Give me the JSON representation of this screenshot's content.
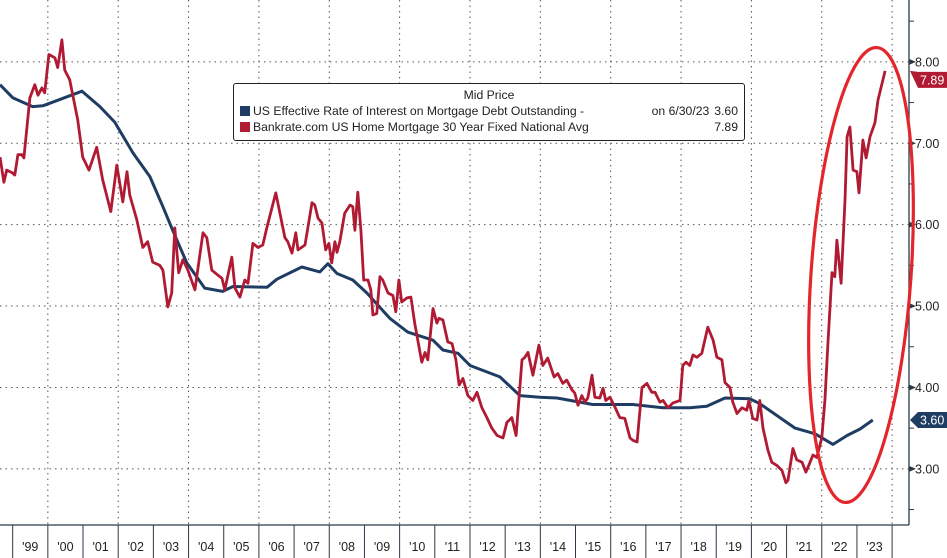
{
  "chart_data": {
    "type": "line",
    "legend": {
      "title": "Mid Price",
      "placement": "top-center",
      "entries": [
        {
          "label": "US Effective Rate of Interest on Mortgage Debt Outstanding -",
          "date": "on 6/30/23",
          "value": "3.60",
          "color": "#1f3d63"
        },
        {
          "label": "Bankrate.com US Home Mortgage 30 Year Fixed National Avg",
          "date": "",
          "value": "7.89",
          "color": "#b01a33"
        }
      ]
    },
    "xlim": [
      1998.64,
      2024.48
    ],
    "ylim": [
      2.31,
      8.76
    ],
    "y_axis_position": "right",
    "grid": true,
    "x_tick_labels": [
      "'99",
      "'00",
      "'01",
      "'02",
      "'03",
      "'04",
      "'05",
      "'06",
      "'07",
      "'08",
      "'09",
      "'10",
      "'11",
      "'12",
      "'13",
      "'14",
      "'15",
      "'16",
      "'17",
      "'18",
      "'19",
      "'20",
      "'21",
      "'22",
      "'23"
    ],
    "x_tick_years": [
      1999,
      2000,
      2001,
      2002,
      2003,
      2004,
      2005,
      2006,
      2007,
      2008,
      2009,
      2010,
      2011,
      2012,
      2013,
      2014,
      2015,
      2016,
      2017,
      2018,
      2019,
      2020,
      2021,
      2022,
      2023
    ],
    "y_ticks": [
      3,
      4,
      5,
      6,
      7,
      8
    ],
    "y_tick_labels": [
      "3.00",
      "4.00",
      "5.00",
      "6.00",
      "7.00",
      "8.00"
    ],
    "last_value_tags": [
      {
        "series": 0,
        "label": "3.60",
        "value": 3.6
      },
      {
        "series": 1,
        "label": "7.89",
        "value": 7.89
      }
    ],
    "series": [
      {
        "name": "US Effective Rate of Interest on Mortgage Debt Outstanding",
        "color": "#1f3d63",
        "points": [
          [
            1998.64,
            7.72
          ],
          [
            1999.0,
            7.56
          ],
          [
            1999.57,
            7.45
          ],
          [
            1999.86,
            7.46
          ],
          [
            2000.97,
            7.64
          ],
          [
            2001.48,
            7.45
          ],
          [
            2001.9,
            7.26
          ],
          [
            2002.42,
            6.88
          ],
          [
            2002.9,
            6.59
          ],
          [
            2003.27,
            6.22
          ],
          [
            2003.55,
            5.93
          ],
          [
            2003.95,
            5.53
          ],
          [
            2004.46,
            5.22
          ],
          [
            2004.97,
            5.18
          ],
          [
            2005.26,
            5.24
          ],
          [
            2006.23,
            5.23
          ],
          [
            2006.51,
            5.33
          ],
          [
            2007.22,
            5.48
          ],
          [
            2007.73,
            5.42
          ],
          [
            2007.96,
            5.52
          ],
          [
            2008.22,
            5.4
          ],
          [
            2008.67,
            5.32
          ],
          [
            2009.07,
            5.16
          ],
          [
            2009.72,
            4.85
          ],
          [
            2010.23,
            4.68
          ],
          [
            2010.95,
            4.58
          ],
          [
            2011.23,
            4.46
          ],
          [
            2011.66,
            4.42
          ],
          [
            2012.0,
            4.27
          ],
          [
            2012.85,
            4.13
          ],
          [
            2013.42,
            3.9
          ],
          [
            2013.99,
            3.88
          ],
          [
            2014.47,
            3.87
          ],
          [
            2015.49,
            3.79
          ],
          [
            2016.63,
            3.79
          ],
          [
            2017.48,
            3.75
          ],
          [
            2018.25,
            3.75
          ],
          [
            2018.73,
            3.77
          ],
          [
            2019.25,
            3.87
          ],
          [
            2019.96,
            3.86
          ],
          [
            2020.24,
            3.8
          ],
          [
            2020.81,
            3.63
          ],
          [
            2021.24,
            3.5
          ],
          [
            2021.81,
            3.43
          ],
          [
            2022.32,
            3.3
          ],
          [
            2022.72,
            3.41
          ],
          [
            2023.09,
            3.49
          ],
          [
            2023.45,
            3.6
          ]
        ]
      },
      {
        "name": "Bankrate.com US Home Mortgage 30 Year Fixed National Avg",
        "color": "#b01a33",
        "points": [
          [
            1998.64,
            6.83
          ],
          [
            1998.75,
            6.52
          ],
          [
            1998.83,
            6.67
          ],
          [
            1998.98,
            6.64
          ],
          [
            1999.06,
            6.61
          ],
          [
            1999.15,
            6.86
          ],
          [
            1999.26,
            6.86
          ],
          [
            1999.32,
            6.82
          ],
          [
            1999.49,
            7.56
          ],
          [
            1999.63,
            7.72
          ],
          [
            1999.72,
            7.59
          ],
          [
            1999.83,
            7.68
          ],
          [
            1999.91,
            7.62
          ],
          [
            2000.03,
            8.09
          ],
          [
            2000.2,
            8.05
          ],
          [
            2000.28,
            7.93
          ],
          [
            2000.4,
            8.27
          ],
          [
            2000.48,
            7.9
          ],
          [
            2000.62,
            7.78
          ],
          [
            2000.85,
            7.29
          ],
          [
            2000.99,
            6.83
          ],
          [
            2001.17,
            6.67
          ],
          [
            2001.39,
            6.95
          ],
          [
            2001.56,
            6.55
          ],
          [
            2001.79,
            6.16
          ],
          [
            2001.96,
            6.73
          ],
          [
            2002.13,
            6.28
          ],
          [
            2002.25,
            6.65
          ],
          [
            2002.33,
            6.36
          ],
          [
            2002.53,
            6.06
          ],
          [
            2002.7,
            5.72
          ],
          [
            2002.84,
            5.79
          ],
          [
            2002.98,
            5.54
          ],
          [
            2003.18,
            5.5
          ],
          [
            2003.27,
            5.44
          ],
          [
            2003.41,
            4.99
          ],
          [
            2003.52,
            5.16
          ],
          [
            2003.61,
            5.96
          ],
          [
            2003.72,
            5.41
          ],
          [
            2003.84,
            5.57
          ],
          [
            2003.98,
            5.44
          ],
          [
            2004.18,
            5.2
          ],
          [
            2004.41,
            5.9
          ],
          [
            2004.52,
            5.84
          ],
          [
            2004.66,
            5.44
          ],
          [
            2004.83,
            5.38
          ],
          [
            2004.95,
            5.34
          ],
          [
            2005.03,
            5.2
          ],
          [
            2005.23,
            5.6
          ],
          [
            2005.32,
            5.22
          ],
          [
            2005.46,
            5.11
          ],
          [
            2005.6,
            5.32
          ],
          [
            2005.69,
            5.28
          ],
          [
            2005.83,
            5.77
          ],
          [
            2005.97,
            5.72
          ],
          [
            2006.11,
            5.75
          ],
          [
            2006.23,
            5.97
          ],
          [
            2006.48,
            6.39
          ],
          [
            2006.74,
            5.84
          ],
          [
            2006.82,
            5.79
          ],
          [
            2006.94,
            5.65
          ],
          [
            2007.05,
            5.9
          ],
          [
            2007.11,
            5.69
          ],
          [
            2007.31,
            5.75
          ],
          [
            2007.51,
            6.27
          ],
          [
            2007.59,
            6.24
          ],
          [
            2007.68,
            6.08
          ],
          [
            2007.79,
            6.02
          ],
          [
            2007.9,
            5.69
          ],
          [
            2007.99,
            5.77
          ],
          [
            2008.07,
            5.53
          ],
          [
            2008.16,
            5.79
          ],
          [
            2008.22,
            5.66
          ],
          [
            2008.3,
            5.79
          ],
          [
            2008.44,
            6.14
          ],
          [
            2008.59,
            6.24
          ],
          [
            2008.67,
            6.22
          ],
          [
            2008.73,
            5.93
          ],
          [
            2008.81,
            6.4
          ],
          [
            2008.9,
            5.93
          ],
          [
            2008.98,
            5.32
          ],
          [
            2009.1,
            5.32
          ],
          [
            2009.18,
            5.2
          ],
          [
            2009.24,
            4.89
          ],
          [
            2009.35,
            4.91
          ],
          [
            2009.44,
            5.36
          ],
          [
            2009.52,
            5.32
          ],
          [
            2009.67,
            5.16
          ],
          [
            2009.81,
            5.13
          ],
          [
            2009.89,
            4.93
          ],
          [
            2009.98,
            5.32
          ],
          [
            2010.06,
            5.05
          ],
          [
            2010.21,
            5.1
          ],
          [
            2010.32,
            5.11
          ],
          [
            2010.43,
            4.79
          ],
          [
            2010.63,
            4.31
          ],
          [
            2010.72,
            4.43
          ],
          [
            2010.8,
            4.34
          ],
          [
            2010.95,
            4.97
          ],
          [
            2011.06,
            4.79
          ],
          [
            2011.12,
            4.85
          ],
          [
            2011.23,
            4.83
          ],
          [
            2011.37,
            4.56
          ],
          [
            2011.49,
            4.54
          ],
          [
            2011.6,
            4.34
          ],
          [
            2011.69,
            4.03
          ],
          [
            2011.8,
            4.11
          ],
          [
            2011.94,
            3.9
          ],
          [
            2012.08,
            3.84
          ],
          [
            2012.2,
            3.94
          ],
          [
            2012.34,
            3.75
          ],
          [
            2012.48,
            3.63
          ],
          [
            2012.62,
            3.5
          ],
          [
            2012.77,
            3.41
          ],
          [
            2012.94,
            3.38
          ],
          [
            2013.05,
            3.57
          ],
          [
            2013.19,
            3.63
          ],
          [
            2013.31,
            3.41
          ],
          [
            2013.48,
            4.34
          ],
          [
            2013.56,
            4.37
          ],
          [
            2013.65,
            4.43
          ],
          [
            2013.79,
            4.15
          ],
          [
            2013.96,
            4.52
          ],
          [
            2014.07,
            4.27
          ],
          [
            2014.21,
            4.36
          ],
          [
            2014.39,
            4.13
          ],
          [
            2014.5,
            4.17
          ],
          [
            2014.64,
            4.05
          ],
          [
            2014.75,
            4.09
          ],
          [
            2014.9,
            3.97
          ],
          [
            2014.98,
            3.93
          ],
          [
            2015.07,
            3.78
          ],
          [
            2015.18,
            3.9
          ],
          [
            2015.27,
            3.82
          ],
          [
            2015.35,
            3.87
          ],
          [
            2015.47,
            4.15
          ],
          [
            2015.55,
            3.88
          ],
          [
            2015.69,
            3.87
          ],
          [
            2015.78,
            3.99
          ],
          [
            2015.86,
            3.84
          ],
          [
            2015.98,
            3.88
          ],
          [
            2016.12,
            3.76
          ],
          [
            2016.26,
            3.63
          ],
          [
            2016.4,
            3.62
          ],
          [
            2016.55,
            3.38
          ],
          [
            2016.63,
            3.35
          ],
          [
            2016.75,
            3.33
          ],
          [
            2016.89,
            4.0
          ],
          [
            2017.03,
            4.05
          ],
          [
            2017.17,
            3.94
          ],
          [
            2017.26,
            3.94
          ],
          [
            2017.4,
            3.82
          ],
          [
            2017.49,
            3.84
          ],
          [
            2017.63,
            3.75
          ],
          [
            2017.77,
            3.81
          ],
          [
            2017.97,
            3.84
          ],
          [
            2018.05,
            4.27
          ],
          [
            2018.14,
            4.31
          ],
          [
            2018.25,
            4.27
          ],
          [
            2018.34,
            4.4
          ],
          [
            2018.45,
            4.37
          ],
          [
            2018.59,
            4.42
          ],
          [
            2018.76,
            4.74
          ],
          [
            2018.91,
            4.58
          ],
          [
            2019.02,
            4.37
          ],
          [
            2019.16,
            4.34
          ],
          [
            2019.25,
            4.06
          ],
          [
            2019.39,
            4.0
          ],
          [
            2019.47,
            3.82
          ],
          [
            2019.59,
            3.68
          ],
          [
            2019.73,
            3.75
          ],
          [
            2019.87,
            3.72
          ],
          [
            2019.93,
            3.84
          ],
          [
            2020.04,
            3.62
          ],
          [
            2020.16,
            3.6
          ],
          [
            2020.24,
            3.84
          ],
          [
            2020.33,
            3.5
          ],
          [
            2020.47,
            3.23
          ],
          [
            2020.58,
            3.08
          ],
          [
            2020.73,
            3.04
          ],
          [
            2020.87,
            2.98
          ],
          [
            2020.98,
            2.83
          ],
          [
            2021.04,
            2.86
          ],
          [
            2021.18,
            3.25
          ],
          [
            2021.29,
            3.11
          ],
          [
            2021.44,
            3.08
          ],
          [
            2021.55,
            2.96
          ],
          [
            2021.63,
            3.04
          ],
          [
            2021.75,
            3.17
          ],
          [
            2021.86,
            3.14
          ],
          [
            2022.0,
            3.38
          ],
          [
            2022.09,
            3.84
          ],
          [
            2022.18,
            4.58
          ],
          [
            2022.29,
            5.41
          ],
          [
            2022.37,
            5.36
          ],
          [
            2022.43,
            5.81
          ],
          [
            2022.55,
            5.28
          ],
          [
            2022.66,
            6.3
          ],
          [
            2022.72,
            7.08
          ],
          [
            2022.8,
            7.2
          ],
          [
            2022.89,
            6.67
          ],
          [
            2023.0,
            6.65
          ],
          [
            2023.06,
            6.39
          ],
          [
            2023.17,
            7.04
          ],
          [
            2023.26,
            6.82
          ],
          [
            2023.37,
            7.08
          ],
          [
            2023.51,
            7.25
          ],
          [
            2023.6,
            7.53
          ],
          [
            2023.8,
            7.89
          ]
        ]
      }
    ],
    "annotation_color": "#e3262b"
  }
}
